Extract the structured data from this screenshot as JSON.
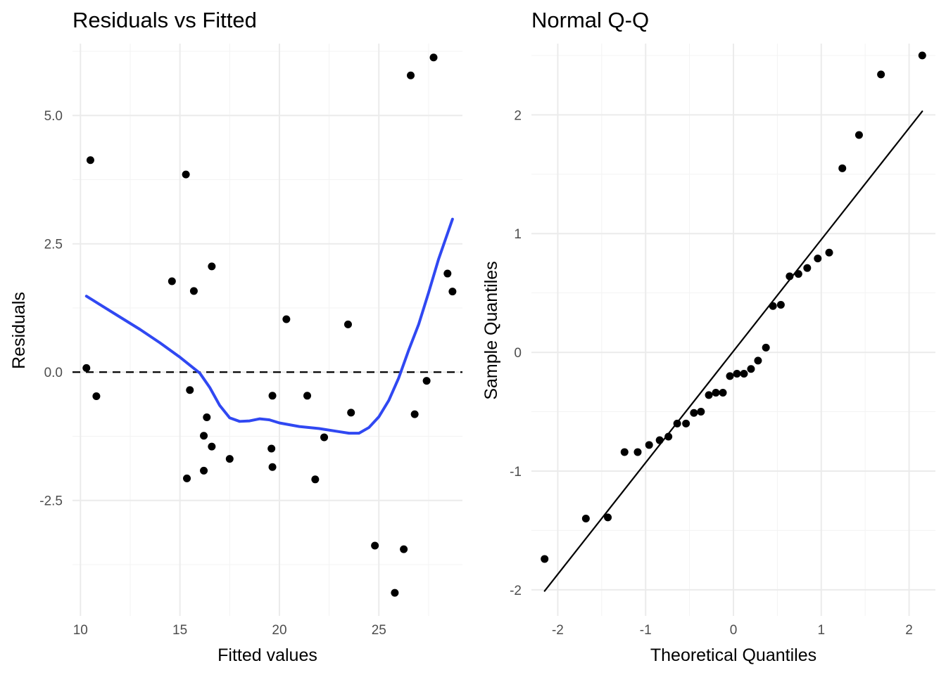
{
  "chart_data": [
    {
      "type": "scatter",
      "title": "Residuals vs Fitted",
      "xlabel": "Fitted values",
      "ylabel": "Residuals",
      "xlim": [
        9.6,
        29.2
      ],
      "ylim": [
        -4.75,
        6.4
      ],
      "xticks": [
        10,
        15,
        20,
        25
      ],
      "xtick_labels": [
        "10",
        "15",
        "20",
        "25"
      ],
      "yticks": [
        -2.5,
        0,
        2.5,
        5
      ],
      "ytick_labels": [
        "-2.5",
        "0.0",
        "2.5",
        "5.0"
      ],
      "grid": true,
      "reference_line": {
        "y": 0,
        "style": "dashed",
        "color": "#000000"
      },
      "colors": {
        "points": "#000000",
        "smooth": "#3048f2",
        "grid_major": "#ebebeb",
        "grid_minor": "#f3f3f3"
      },
      "series": [
        {
          "type": "scatter",
          "points": [
            [
              10.3,
              0.08
            ],
            [
              10.5,
              4.13
            ],
            [
              10.8,
              -0.47
            ],
            [
              14.6,
              1.77
            ],
            [
              15.3,
              3.85
            ],
            [
              15.35,
              -2.07
            ],
            [
              15.5,
              -0.35
            ],
            [
              15.7,
              1.58
            ],
            [
              16.2,
              -1.24
            ],
            [
              16.2,
              -1.92
            ],
            [
              16.35,
              -0.88
            ],
            [
              16.6,
              2.06
            ],
            [
              16.6,
              -1.45
            ],
            [
              17.5,
              -1.69
            ],
            [
              19.6,
              -1.49
            ],
            [
              19.65,
              -0.46
            ],
            [
              19.65,
              -1.85
            ],
            [
              20.35,
              1.03
            ],
            [
              21.4,
              -0.46
            ],
            [
              21.8,
              -2.09
            ],
            [
              22.25,
              -1.27
            ],
            [
              23.45,
              0.93
            ],
            [
              23.6,
              -0.79
            ],
            [
              24.8,
              -3.38
            ],
            [
              25.8,
              -4.3
            ],
            [
              26.25,
              -3.45
            ],
            [
              26.6,
              5.78
            ],
            [
              26.8,
              -0.82
            ],
            [
              27.4,
              -0.17
            ],
            [
              27.75,
              6.13
            ],
            [
              28.45,
              1.92
            ],
            [
              28.7,
              1.57
            ]
          ]
        },
        {
          "type": "line",
          "points": [
            [
              10.3,
              1.48
            ],
            [
              11.0,
              1.31
            ],
            [
              12.0,
              1.07
            ],
            [
              13.0,
              0.83
            ],
            [
              14.0,
              0.57
            ],
            [
              15.0,
              0.29
            ],
            [
              16.0,
              -0.02
            ],
            [
              16.5,
              -0.3
            ],
            [
              17.0,
              -0.65
            ],
            [
              17.5,
              -0.89
            ],
            [
              18.0,
              -0.96
            ],
            [
              18.5,
              -0.95
            ],
            [
              19.0,
              -0.91
            ],
            [
              19.5,
              -0.93
            ],
            [
              20.0,
              -0.99
            ],
            [
              21.0,
              -1.06
            ],
            [
              22.0,
              -1.1
            ],
            [
              23.0,
              -1.16
            ],
            [
              23.5,
              -1.19
            ],
            [
              24.0,
              -1.19
            ],
            [
              24.5,
              -1.08
            ],
            [
              25.0,
              -0.87
            ],
            [
              25.5,
              -0.55
            ],
            [
              26.0,
              -0.11
            ],
            [
              26.5,
              0.43
            ],
            [
              27.0,
              0.93
            ],
            [
              27.5,
              1.55
            ],
            [
              28.0,
              2.2
            ],
            [
              28.7,
              2.98
            ]
          ]
        }
      ]
    },
    {
      "type": "scatter",
      "title": "Normal Q-Q",
      "xlabel": "Theoretical Quantiles",
      "ylabel": "Sample Quantiles",
      "xlim": [
        -2.3,
        2.3
      ],
      "ylim": [
        -2.22,
        2.6
      ],
      "xticks": [
        -2,
        -1,
        0,
        1,
        2
      ],
      "xtick_labels": [
        "-2",
        "-1",
        "0",
        "1",
        "2"
      ],
      "yticks": [
        -2,
        -1,
        0,
        1,
        2
      ],
      "ytick_labels": [
        "-2",
        "-1",
        "0",
        "1",
        "2"
      ],
      "grid": true,
      "colors": {
        "points": "#000000",
        "line": "#000000",
        "grid_major": "#ebebeb",
        "grid_minor": "#f3f3f3"
      },
      "series": [
        {
          "type": "scatter",
          "points": [
            [
              -2.15,
              -1.74
            ],
            [
              -1.68,
              -1.4
            ],
            [
              -1.43,
              -1.39
            ],
            [
              -1.24,
              -0.84
            ],
            [
              -1.09,
              -0.84
            ],
            [
              -0.96,
              -0.78
            ],
            [
              -0.84,
              -0.74
            ],
            [
              -0.74,
              -0.71
            ],
            [
              -0.64,
              -0.6
            ],
            [
              -0.54,
              -0.6
            ],
            [
              -0.45,
              -0.51
            ],
            [
              -0.37,
              -0.5
            ],
            [
              -0.28,
              -0.36
            ],
            [
              -0.2,
              -0.34
            ],
            [
              -0.12,
              -0.34
            ],
            [
              -0.04,
              -0.2
            ],
            [
              0.04,
              -0.18
            ],
            [
              0.12,
              -0.18
            ],
            [
              0.2,
              -0.14
            ],
            [
              0.28,
              -0.07
            ],
            [
              0.37,
              0.04
            ],
            [
              0.45,
              0.39
            ],
            [
              0.54,
              0.4
            ],
            [
              0.64,
              0.64
            ],
            [
              0.74,
              0.66
            ],
            [
              0.84,
              0.71
            ],
            [
              0.96,
              0.79
            ],
            [
              1.09,
              0.84
            ],
            [
              1.24,
              1.55
            ],
            [
              1.43,
              1.83
            ],
            [
              1.68,
              2.34
            ],
            [
              2.15,
              2.5
            ]
          ]
        },
        {
          "type": "line",
          "points": [
            [
              -2.15,
              -2.01
            ],
            [
              2.15,
              2.03
            ]
          ]
        }
      ]
    }
  ]
}
